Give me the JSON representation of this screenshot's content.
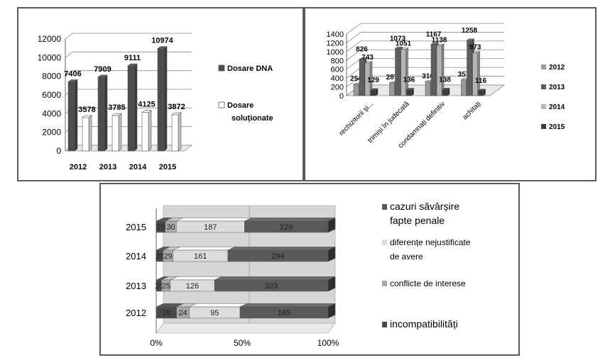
{
  "chart_data": [
    {
      "type": "bar",
      "categories": [
        "2012",
        "2013",
        "2014",
        "2015"
      ],
      "series": [
        {
          "name": "Dosare DNA",
          "values": [
            7406,
            7909,
            9111,
            10974
          ],
          "color": "#4d4d4d"
        },
        {
          "name": "Dosare soluționate",
          "values": [
            3578,
            3785,
            4125,
            3872
          ],
          "color": "#ffffff"
        }
      ],
      "legend_lines": [
        [
          "Dosare DNA"
        ],
        [
          "Dosare",
          "soluționate"
        ]
      ],
      "y_ticks": [
        "0",
        "2000",
        "4000",
        "6000",
        "8000",
        "10000",
        "12000"
      ],
      "ylim": [
        0,
        12000
      ],
      "legend": "right"
    },
    {
      "type": "bar",
      "categories": [
        "rechizitorii și...",
        "trimiși în judecată",
        "condamnați definitiv",
        "achitați"
      ],
      "series": [
        {
          "name": "2012",
          "values": [
            254,
            287,
            316,
            357
          ],
          "color": "#9a9a9a"
        },
        {
          "name": "2013",
          "values": [
            826,
            1073,
            1167,
            1258
          ],
          "color": "#5e5e5e"
        },
        {
          "name": "2014",
          "values": [
            743,
            1051,
            1138,
            973
          ],
          "color": "#b4b4b4"
        },
        {
          "name": "2015",
          "values": [
            129,
            136,
            138,
            116
          ],
          "color": "#3a3a3a"
        }
      ],
      "data_labels": [
        [
          "254",
          "287",
          "316",
          "357"
        ],
        [
          "826",
          "1073",
          "1167",
          "1258"
        ],
        [
          "743",
          "1051",
          "1138",
          "973"
        ],
        [
          "129",
          "136",
          "138",
          "116"
        ]
      ],
      "y_ticks": [
        "0",
        "200",
        "400",
        "600",
        "800",
        "1000",
        "1200",
        "1400"
      ],
      "ylim": [
        0,
        1400
      ],
      "legend": "right"
    },
    {
      "type": "bar",
      "orientation": "horizontal-stacked-percent",
      "categories": [
        "2012",
        "2013",
        "2014",
        "2015"
      ],
      "series": [
        {
          "name": "incompatibilități",
          "values": [
            38,
            15,
            20,
            25
          ],
          "labels": [
            "38",
            "15",
            "20",
            "25"
          ],
          "color": "#4a4a4a"
        },
        {
          "name": "conflicte de interese",
          "values": [
            24,
            25,
            29,
            30
          ],
          "labels": [
            "24",
            "25",
            "29",
            "30"
          ],
          "color": "#a9a9a9"
        },
        {
          "name": "diferențe nejustificate de avere",
          "values": [
            95,
            126,
            161,
            187
          ],
          "labels": [
            "95",
            "126",
            "161",
            "187"
          ],
          "color": "#dcdcdc"
        },
        {
          "name": "cazuri săvârșire fapte penale",
          "values": [
            165,
            323,
            294,
            229
          ],
          "labels": [
            "165",
            "323",
            "294",
            "229"
          ],
          "color": "#5a5a5a"
        }
      ],
      "legend_lines": [
        [
          "cazuri săvârșire",
          "fapte penale"
        ],
        [
          "diferențe nejustificate",
          "de avere"
        ],
        [
          "conflicte de interese"
        ],
        [
          "incompatibilități"
        ]
      ],
      "x_ticks": [
        "0%",
        "50%",
        "100%"
      ],
      "legend": "right"
    }
  ]
}
